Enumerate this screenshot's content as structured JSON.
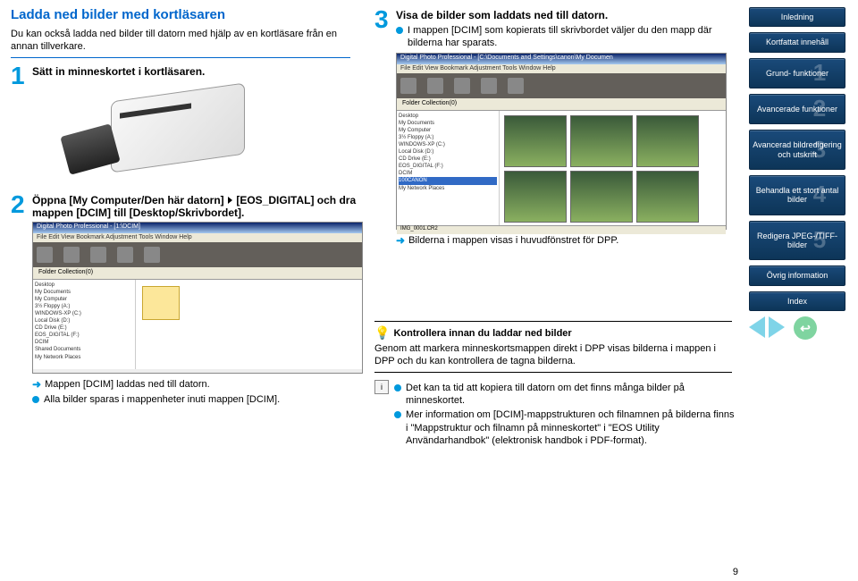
{
  "title": "Ladda ned bilder med kortläsaren",
  "intro": "Du kan också ladda ned bilder till datorn med hjälp av en kortläsare från en annan tillverkare.",
  "step1": {
    "title": "Sätt in minneskortet i kortläsaren."
  },
  "step2": {
    "title_a": "Öppna [My Computer/Den här datorn] ",
    "title_b": " [EOS_DIGITAL] och dra mappen [DCIM] till [Desktop/Skrivbordet].",
    "arrow": "Mappen [DCIM] laddas ned till datorn.",
    "bullet": "Alla bilder sparas i mappenheter inuti mappen [DCIM]."
  },
  "step3": {
    "title": "Visa de bilder som laddats ned till datorn.",
    "bullet": "I mappen [DCIM] som kopierats till skrivbordet väljer du den mapp där bilderna har sparats.",
    "arrow": "Bilderna i mappen visas i huvudfönstret för DPP."
  },
  "ss": {
    "title": "Digital Photo Professional - [1:\\DCIM]",
    "title2": "Digital Photo Professional - [C:\\Documents and Settings\\canon\\My Documen",
    "menu": "File  Edit  View  Bookmark  Adjustment  Tools  Window  Help",
    "tabs": "Folder      Collection(0)",
    "tree": [
      "Desktop",
      " My Documents",
      " My Computer",
      "  3½ Floppy (A:)",
      "  WINDOWS-XP (C:)",
      "  Local Disk (D:)",
      "  CD Drive (E:)",
      "  EOS_DIGITAL (F:)",
      "   DCIM",
      "  Shared Documents",
      " My Network Places"
    ],
    "tree2": [
      "Desktop",
      " My Documents",
      " My Computer",
      "  3½ Floppy (A:)",
      "  WINDOWS-XP (C:)",
      "  Local Disk (D:)",
      "  CD Drive (E:)",
      "  EOS_DIGITAL (F:)",
      " DCIM",
      "   100CANON",
      " My Network Places"
    ],
    "sel": "   100CANON",
    "status": "IMG_0001.CR2",
    "thumb_label": "100CANON"
  },
  "tip": {
    "title": "Kontrollera innan du laddar ned bilder",
    "text": "Genom att markera minneskortsmappen direkt i DPP visas bilderna i mappen i DPP och du kan kontrollera de tagna bilderna."
  },
  "info": {
    "b1": "Det kan ta tid att kopiera till datorn om det finns många bilder på minneskortet.",
    "b2": "Mer information om [DCIM]-mappstrukturen och filnamnen på bilderna finns i \"Mappstruktur och filnamn på minneskortet\" i \"EOS Utility Användarhandbok\" (elektronisk handbok i PDF-format)."
  },
  "side": {
    "intro": "Inledning",
    "kort": "Kortfattat innehåll",
    "s1": "Grund-\nfunktioner",
    "s2": "Avancerade funktioner",
    "s3": "Avancerad bildredigering och utskrift",
    "s4": "Behandla ett stort antal bilder",
    "s5": "Redigera JPEG-/TIFF-bilder",
    "ovrig": "Övrig information",
    "index": "Index"
  },
  "page": "9"
}
